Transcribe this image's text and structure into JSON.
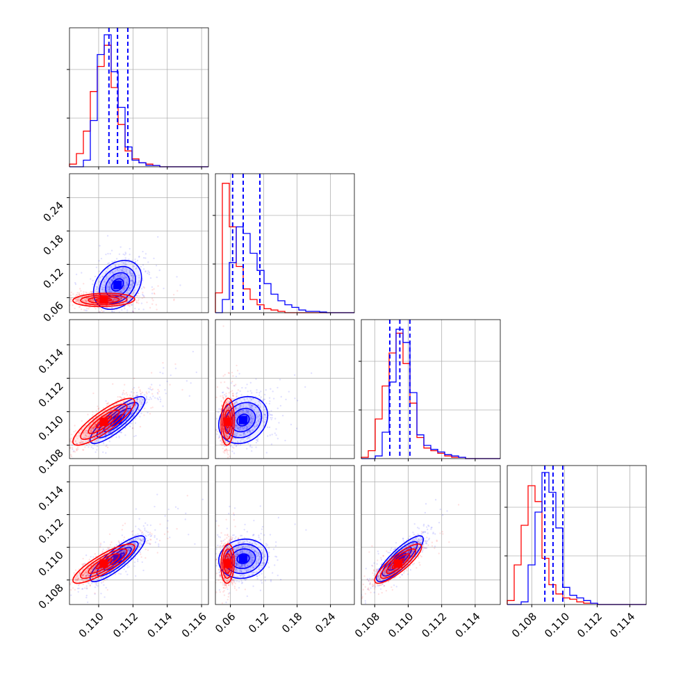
{
  "chart_data": {
    "type": "corner",
    "parameters": 4,
    "title": "",
    "colors": {
      "blue": "#0000ff",
      "red": "#ff0000",
      "grid": "#b0b0b0"
    },
    "grid": true,
    "axes": {
      "p0": {
        "range": [
          0.1083,
          0.1164
        ],
        "ticks": [
          "0.110",
          "0.112",
          "0.114",
          "0.116"
        ],
        "tick_values": [
          0.11,
          0.112,
          0.114,
          0.116
        ]
      },
      "p1": {
        "range": [
          0.033,
          0.283
        ],
        "ticks": [
          "0.06",
          "0.12",
          "0.18",
          "0.24"
        ],
        "tick_values": [
          0.06,
          0.12,
          0.18,
          0.24
        ]
      },
      "p2": {
        "range": [
          0.1072,
          0.1155
        ],
        "ticks": [
          "0.108",
          "0.110",
          "0.112",
          "0.114"
        ],
        "tick_values": [
          0.108,
          0.11,
          0.112,
          0.114
        ]
      },
      "p3": {
        "range": [
          0.1065,
          0.115
        ],
        "ticks": [
          "0.108",
          "0.110",
          "0.112",
          "0.114"
        ],
        "tick_values": [
          0.108,
          0.11,
          0.112,
          0.114
        ]
      }
    },
    "series": [
      {
        "color": "#0000ff",
        "quantiles": {
          "p0": [
            0.1106,
            0.1111,
            0.1117
          ],
          "p1": [
            0.064,
            0.083,
            0.113
          ],
          "p2": [
            0.1089,
            0.1095,
            0.1101
          ],
          "p3": [
            0.1088,
            0.1093,
            0.1099
          ]
        },
        "histograms": {
          "p0": [
            0,
            0,
            0.05,
            0.35,
            0.85,
            1.0,
            0.72,
            0.45,
            0.15,
            0.05,
            0.03,
            0.01,
            0.01,
            0,
            0,
            0,
            0,
            0,
            0,
            0
          ],
          "p1": [
            0,
            0.1,
            0.38,
            0.65,
            0.6,
            0.45,
            0.32,
            0.22,
            0.14,
            0.09,
            0.06,
            0.04,
            0.02,
            0.01,
            0.01,
            0.005,
            0,
            0,
            0,
            0
          ],
          "p2": [
            0,
            0,
            0.02,
            0.2,
            0.58,
            0.98,
            0.88,
            0.5,
            0.18,
            0.1,
            0.07,
            0.05,
            0.03,
            0.02,
            0.01,
            0,
            0,
            0,
            0,
            0
          ],
          "p3": [
            0,
            0,
            0.02,
            0.3,
            0.7,
            1.0,
            0.85,
            0.58,
            0.13,
            0.07,
            0.05,
            0.03,
            0.01,
            0,
            0,
            0,
            0,
            0,
            0,
            0
          ]
        },
        "pairs": {
          "p0_p1": {
            "center": [
              0.1111,
              0.083
            ],
            "sigma": [
              0.0007,
              0.022
            ],
            "rho": 0.3
          },
          "p0_p2": {
            "center": [
              0.1111,
              0.1095
            ],
            "sigma": [
              0.0008,
              0.0007
            ],
            "rho": 0.85
          },
          "p1_p2": {
            "center": [
              0.083,
              0.1095
            ],
            "sigma": [
              0.022,
              0.0007
            ],
            "rho": 0.2
          },
          "p0_p3": {
            "center": [
              0.1111,
              0.1093
            ],
            "sigma": [
              0.0008,
              0.0007
            ],
            "rho": 0.85
          },
          "p1_p3": {
            "center": [
              0.083,
              0.1093
            ],
            "sigma": [
              0.022,
              0.0006
            ],
            "rho": 0.1
          },
          "p2_p3": {
            "center": [
              0.1095,
              0.1093
            ],
            "sigma": [
              0.0007,
              0.0007
            ],
            "rho": 0.85
          }
        }
      },
      {
        "color": "#ff0000",
        "quantiles": null,
        "histograms": {
          "p0": [
            0.02,
            0.1,
            0.27,
            0.57,
            0.76,
            0.92,
            0.6,
            0.32,
            0.12,
            0.06,
            0.03,
            0.02,
            0.01,
            0,
            0,
            0,
            0,
            0,
            0,
            0
          ],
          "p1": [
            0.15,
            0.98,
            0.65,
            0.35,
            0.18,
            0.1,
            0.06,
            0.03,
            0.02,
            0.01,
            0,
            0,
            0,
            0,
            0,
            0,
            0,
            0,
            0,
            0
          ],
          "p2": [
            0.01,
            0.06,
            0.3,
            0.55,
            0.8,
            0.95,
            0.72,
            0.42,
            0.16,
            0.08,
            0.06,
            0.04,
            0.02,
            0.01,
            0.01,
            0,
            0,
            0,
            0,
            0
          ],
          "p3": [
            0.03,
            0.3,
            0.6,
            0.9,
            0.78,
            0.35,
            0.15,
            0.08,
            0.05,
            0.04,
            0.02,
            0.01,
            0.01,
            0,
            0,
            0,
            0,
            0,
            0,
            0
          ]
        },
        "pairs": {
          "p0_p1": {
            "center": [
              0.1103,
              0.056
            ],
            "sigma": [
              0.0009,
              0.006
            ],
            "rho": 0.1
          },
          "p0_p2": {
            "center": [
              0.1103,
              0.1094
            ],
            "sigma": [
              0.0009,
              0.0007
            ],
            "rho": 0.85
          },
          "p1_p2": {
            "center": [
              0.055,
              0.1094
            ],
            "sigma": [
              0.006,
              0.0007
            ],
            "rho": 0.1
          },
          "p0_p3": {
            "center": [
              0.1103,
              0.109
            ],
            "sigma": [
              0.0009,
              0.0006
            ],
            "rho": 0.85
          },
          "p1_p3": {
            "center": [
              0.055,
              0.109
            ],
            "sigma": [
              0.006,
              0.0006
            ],
            "rho": 0.1
          },
          "p2_p3": {
            "center": [
              0.1094,
              0.109
            ],
            "sigma": [
              0.0007,
              0.0006
            ],
            "rho": 0.85
          }
        }
      }
    ]
  }
}
